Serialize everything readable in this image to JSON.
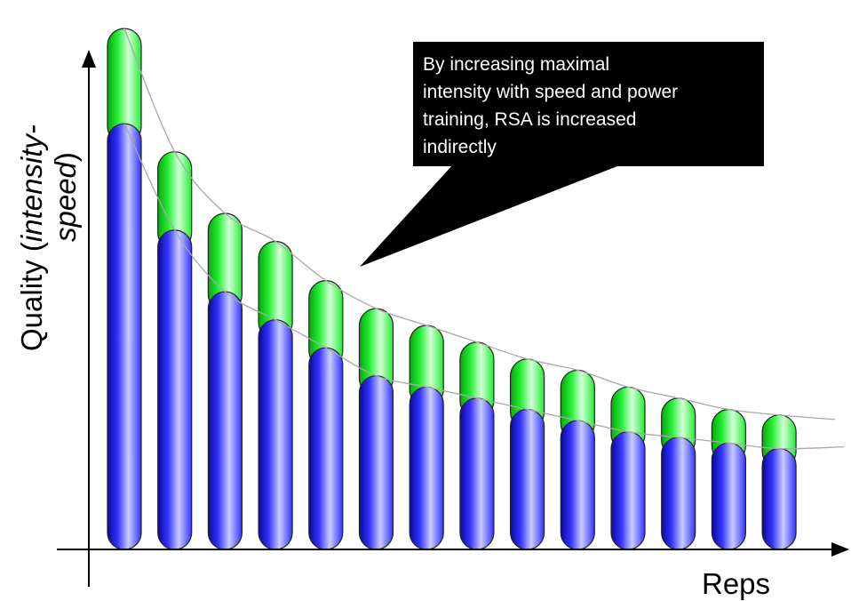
{
  "chart_data": {
    "type": "bar",
    "series": [
      {
        "values": [
          76,
          57,
          46,
          41,
          36,
          31,
          29,
          27,
          25,
          23,
          21,
          20,
          19,
          18
        ]
      },
      {
        "values": [
          17,
          14,
          14,
          14,
          12,
          12,
          11,
          10,
          9,
          9,
          8,
          7,
          6,
          6
        ]
      }
    ],
    "curves": 2,
    "ylabel": {
      "line1_plain": "Quality (",
      "line1_italic": "intensity-",
      "line2_italic": "speed",
      "line2_plain": ")"
    },
    "xlabel": "Reps",
    "annotation": {
      "lines": [
        "By increasing maximal",
        "intensity with speed and power",
        "training, RSA is increased",
        "indirectly"
      ]
    },
    "colors": {
      "blue_light": "#c8ccff",
      "blue": "#3333ff",
      "blue_dark": "#0a0a9a",
      "green_light": "#d4ffd8",
      "green": "#22ee33",
      "green_dark": "#0aa60f",
      "outline": "#222222",
      "curve": "#a8a8a8",
      "callout": "#000000",
      "callout_text": "#ffffff"
    }
  }
}
